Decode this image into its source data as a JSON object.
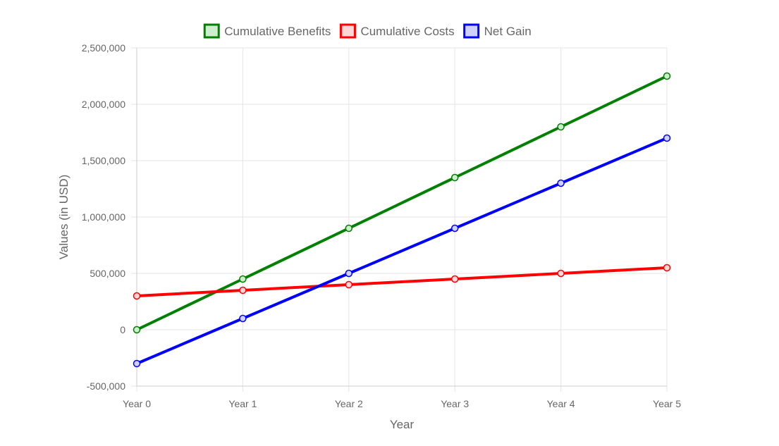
{
  "chart_data": {
    "type": "line",
    "categories": [
      "Year 0",
      "Year 1",
      "Year 2",
      "Year 3",
      "Year 4",
      "Year 5"
    ],
    "series": [
      {
        "name": "Cumulative Benefits",
        "values": [
          0,
          450000,
          900000,
          1350000,
          1800000,
          2250000
        ],
        "color": "#008000",
        "fill": "#cceecc"
      },
      {
        "name": "Cumulative Costs",
        "values": [
          300000,
          350000,
          400000,
          450000,
          500000,
          550000
        ],
        "color": "#ff0000",
        "fill": "#ffd6d6"
      },
      {
        "name": "Net Gain",
        "values": [
          -300000,
          100000,
          500000,
          900000,
          1300000,
          1700000
        ],
        "color": "#0000ff",
        "fill": "#d0d0ff"
      }
    ],
    "xlabel": "Year",
    "ylabel": "Values (in USD)",
    "ylim": [
      -500000,
      2500000
    ],
    "yticks": [
      -500000,
      0,
      500000,
      1000000,
      1500000,
      2000000,
      2500000
    ],
    "ytick_labels": [
      "-500,000",
      "0",
      "500,000",
      "1,000,000",
      "1,500,000",
      "2,000,000",
      "2,500,000"
    ],
    "grid": true,
    "legend_position": "top"
  }
}
